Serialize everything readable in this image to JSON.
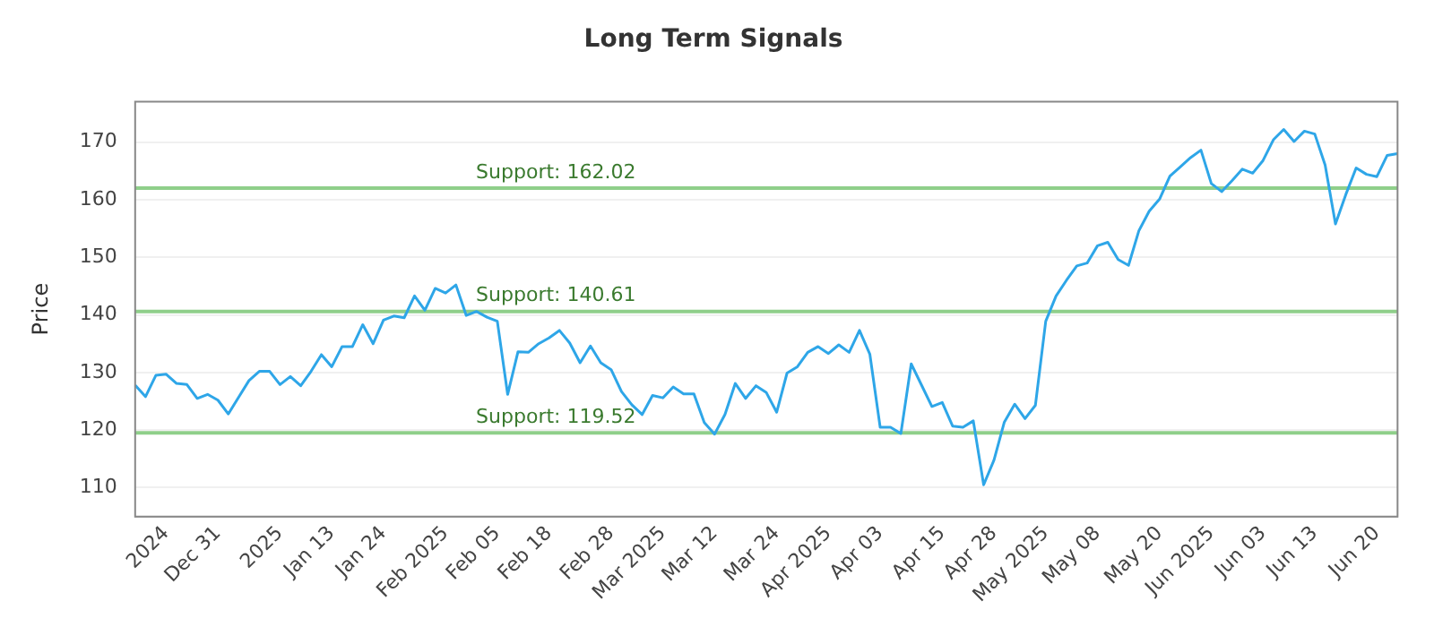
{
  "chart_data": {
    "type": "line",
    "title": "Long Term Signals",
    "ylabel": "Price",
    "categories": [
      null,
      null,
      null,
      "2024",
      null,
      null,
      null,
      null,
      "Dec 31",
      null,
      null,
      null,
      null,
      null,
      "2025",
      null,
      null,
      null,
      null,
      "Jan 13",
      null,
      null,
      null,
      null,
      "Jan 24",
      null,
      null,
      null,
      null,
      null,
      "Feb 2025",
      null,
      null,
      null,
      null,
      "Feb 05",
      null,
      null,
      null,
      null,
      "Feb 18",
      null,
      null,
      null,
      null,
      null,
      "Feb 28",
      null,
      null,
      null,
      null,
      "Mar 2025",
      null,
      null,
      null,
      null,
      "Mar 12",
      null,
      null,
      null,
      null,
      null,
      "Mar 24",
      null,
      null,
      null,
      null,
      "Apr 2025",
      null,
      null,
      null,
      null,
      "Apr 03",
      null,
      null,
      null,
      null,
      null,
      "Apr 15",
      null,
      null,
      null,
      null,
      "Apr 28",
      null,
      null,
      null,
      null,
      "May 2025",
      null,
      null,
      null,
      null,
      "May 08",
      null,
      null,
      null,
      null,
      null,
      "May 20",
      null,
      null,
      null,
      null,
      "Jun 2025",
      null,
      null,
      null,
      null,
      "Jun 03",
      null,
      null,
      null,
      null,
      "Jun 13",
      null,
      null,
      null,
      null,
      null,
      "Jun 20",
      null,
      null
    ],
    "series": [
      {
        "color": "#2ea6e8",
        "values": [
          127.8,
          125.8,
          129.5,
          129.7,
          128.1,
          127.9,
          125.5,
          126.2,
          125.2,
          122.8,
          125.7,
          128.6,
          130.2,
          130.2,
          127.9,
          129.3,
          127.7,
          130.2,
          133.1,
          131.0,
          134.5,
          134.5,
          138.3,
          135.0,
          139.1,
          139.8,
          139.5,
          143.3,
          140.8,
          144.6,
          143.8,
          145.2,
          139.9,
          140.6,
          139.6,
          138.9,
          126.2,
          133.6,
          133.5,
          135.0,
          136.0,
          137.3,
          135.1,
          131.7,
          134.6,
          131.7,
          130.5,
          126.7,
          124.4,
          122.7,
          126.0,
          125.6,
          127.5,
          126.3,
          126.3,
          121.3,
          119.3,
          122.7,
          128.1,
          125.5,
          127.7,
          126.5,
          123.1,
          129.9,
          131.0,
          133.5,
          134.5,
          133.3,
          134.8,
          133.5,
          137.3,
          133.2,
          120.5,
          120.5,
          119.4,
          131.5,
          127.8,
          124.1,
          124.8,
          120.7,
          120.5,
          121.6,
          110.5,
          114.8,
          121.4,
          124.5,
          122.0,
          124.3,
          138.9,
          143.3,
          146.0,
          148.5,
          149.0,
          152.0,
          152.6,
          149.6,
          148.6,
          154.6,
          158.0,
          160.1,
          164.1,
          165.7,
          167.3,
          168.6,
          162.8,
          161.4,
          163.3,
          165.3,
          164.6,
          166.8,
          170.4,
          172.2,
          170.1,
          171.9,
          171.4,
          166.0,
          155.8,
          160.9,
          165.5,
          164.4,
          164.0,
          167.7,
          168.0
        ]
      }
    ],
    "ylim": [
      105,
      177
    ],
    "yticks": [
      110,
      120,
      130,
      140,
      150,
      160,
      170
    ],
    "grid": "y",
    "legend": false,
    "marker": "none",
    "line_style": "solid",
    "ref_lines": [
      {
        "axis": "y",
        "value": 162.02,
        "label": "Support: 162.02",
        "color": "#8fcf8a"
      },
      {
        "axis": "y",
        "value": 140.61,
        "label": "Support: 140.61",
        "color": "#8fcf8a"
      },
      {
        "axis": "y",
        "value": 119.52,
        "label": "Support: 119.52",
        "color": "#8fcf8a"
      }
    ]
  }
}
